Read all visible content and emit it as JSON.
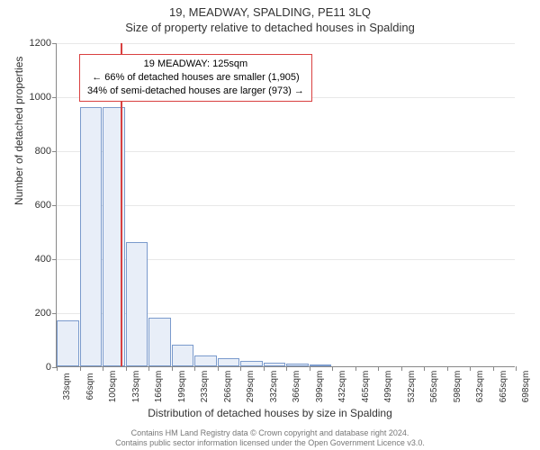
{
  "header": {
    "address": "19, MEADWAY, SPALDING, PE11 3LQ",
    "subtitle": "Size of property relative to detached houses in Spalding"
  },
  "chart": {
    "type": "histogram",
    "ylabel": "Number of detached properties",
    "xlabel": "Distribution of detached houses by size in Spalding",
    "ylim_max": 1200,
    "ytick_step": 200,
    "yticks": [
      0,
      200,
      400,
      600,
      800,
      1000,
      1200
    ],
    "xticks": [
      "33sqm",
      "66sqm",
      "100sqm",
      "133sqm",
      "166sqm",
      "199sqm",
      "233sqm",
      "266sqm",
      "299sqm",
      "332sqm",
      "366sqm",
      "399sqm",
      "432sqm",
      "465sqm",
      "499sqm",
      "532sqm",
      "565sqm",
      "598sqm",
      "632sqm",
      "665sqm",
      "698sqm"
    ],
    "bars": [
      170,
      960,
      960,
      460,
      180,
      80,
      40,
      30,
      20,
      15,
      10,
      8,
      0,
      0,
      0,
      0,
      0,
      0,
      0,
      0
    ],
    "bar_fill": "#e8eef8",
    "bar_border": "#7a9acc",
    "marker_x_index": 2.79,
    "marker_color": "#d94040",
    "background_color": "#ffffff",
    "grid_color": "#e8e8e8"
  },
  "annotation": {
    "border_color": "#d94040",
    "line1": "19 MEADWAY: 125sqm",
    "line2": "← 66% of detached houses are smaller (1,905)",
    "line3": "34% of semi-detached houses are larger (973) →"
  },
  "footer": {
    "line1": "Contains HM Land Registry data © Crown copyright and database right 2024.",
    "line2": "Contains public sector information licensed under the Open Government Licence v3.0."
  }
}
